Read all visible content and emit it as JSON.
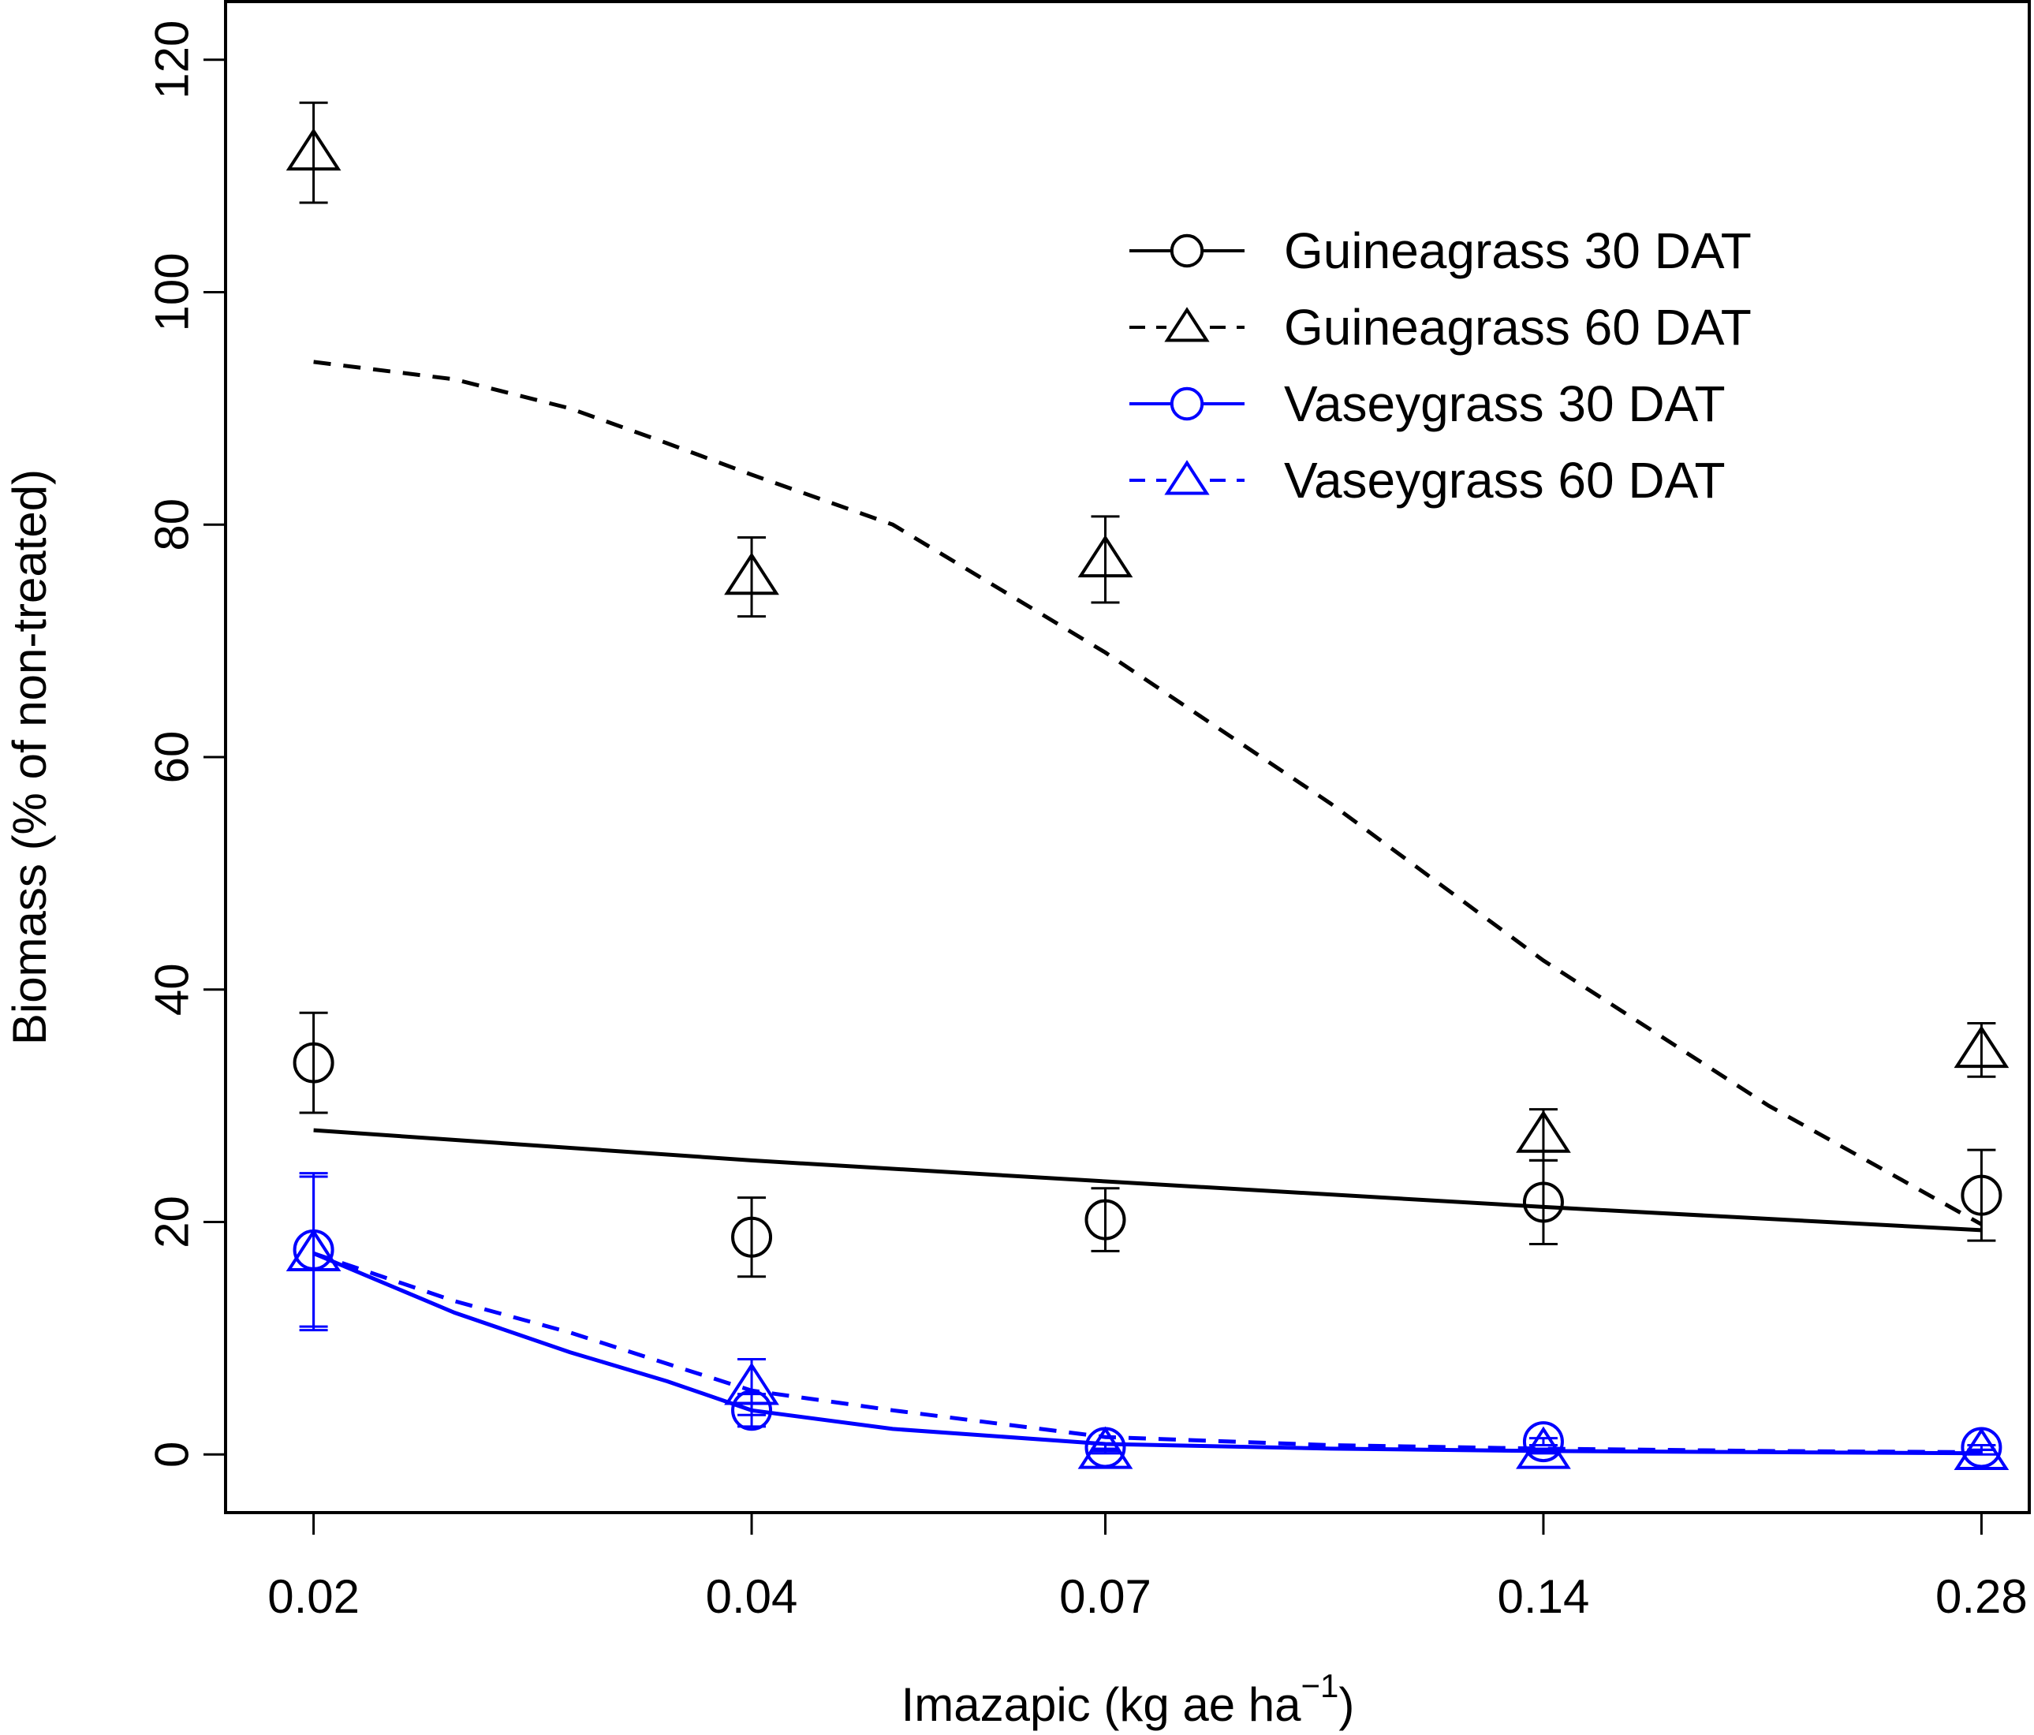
{
  "chart_data": {
    "type": "line",
    "title": "",
    "xlabel": "Imazapic (kg ae ha",
    "xlabel_superscript": "−1",
    "xlabel_close": ")",
    "ylabel": "Biomass (% of non-treated)",
    "x_scale": "log",
    "x_ticks": [
      "0.02",
      "0.04",
      "0.07",
      "0.14",
      "0.28"
    ],
    "x_tick_values": [
      0.02,
      0.04,
      0.07,
      0.14,
      0.28
    ],
    "y_ticks": [
      "0",
      "20",
      "40",
      "60",
      "80",
      "100",
      "120"
    ],
    "y_tick_values": [
      0,
      20,
      40,
      60,
      80,
      100,
      120
    ],
    "xlim": [
      0.0174,
      0.302
    ],
    "ylim": [
      -5,
      125
    ],
    "legend_position": "top-right",
    "series": [
      {
        "name": "Guineagrass 30 DAT",
        "color": "#000000",
        "line_style": "solid",
        "marker": "circle",
        "x": [
          0.02,
          0.04,
          0.07,
          0.14,
          0.28
        ],
        "values": [
          33.7,
          18.7,
          20.2,
          21.7,
          22.3
        ],
        "err": [
          4.3,
          3.4,
          2.7,
          3.6,
          3.9
        ],
        "fit": {
          "x": [
            0.02,
            0.04,
            0.07,
            0.14,
            0.28
          ],
          "y": [
            27.9,
            25.3,
            23.5,
            21.3,
            19.3
          ]
        }
      },
      {
        "name": "Guineagrass 60 DAT",
        "color": "#000000",
        "line_style": "dashed",
        "marker": "triangle",
        "x": [
          0.02,
          0.04,
          0.07,
          0.14,
          0.28
        ],
        "values": [
          112.0,
          75.5,
          77.0,
          27.5,
          34.8
        ],
        "err": [
          4.3,
          3.4,
          3.7,
          2.2,
          2.3
        ],
        "fit": {
          "x": [
            0.02,
            0.025,
            0.03,
            0.035,
            0.04,
            0.05,
            0.07,
            0.1,
            0.14,
            0.2,
            0.28
          ],
          "y": [
            94,
            92.5,
            90,
            87,
            84.3,
            80,
            69,
            56,
            42.5,
            30,
            19.8
          ]
        }
      },
      {
        "name": "Vaseygrass 30 DAT",
        "color": "#0000ff",
        "line_style": "solid",
        "marker": "circle",
        "x": [
          0.02,
          0.04,
          0.07,
          0.14,
          0.28
        ],
        "values": [
          17.6,
          3.8,
          0.6,
          1.1,
          0.6
        ],
        "err": [
          6.6,
          1.4,
          0.3,
          0.3,
          0.2
        ],
        "fit": {
          "x": [
            0.02,
            0.025,
            0.03,
            0.035,
            0.04,
            0.05,
            0.07,
            0.1,
            0.14,
            0.2,
            0.28
          ],
          "y": [
            17.3,
            12.2,
            8.8,
            6.3,
            3.8,
            2.2,
            0.9,
            0.5,
            0.3,
            0.2,
            0.1
          ]
        }
      },
      {
        "name": "Vaseygrass 60 DAT",
        "color": "#0000ff",
        "line_style": "dashed",
        "marker": "triangle",
        "x": [
          0.02,
          0.04,
          0.07,
          0.14,
          0.28
        ],
        "values": [
          17.3,
          5.8,
          0.3,
          0.3,
          0.2
        ],
        "err": [
          6.6,
          2.4,
          0.2,
          0.2,
          0.2
        ],
        "fit": {
          "x": [
            0.02,
            0.025,
            0.03,
            0.035,
            0.04,
            0.05,
            0.07,
            0.1,
            0.14,
            0.2,
            0.28
          ],
          "y": [
            17.3,
            13.2,
            10.5,
            7.8,
            5.5,
            3.8,
            1.5,
            0.8,
            0.5,
            0.3,
            0.2
          ]
        }
      }
    ]
  }
}
